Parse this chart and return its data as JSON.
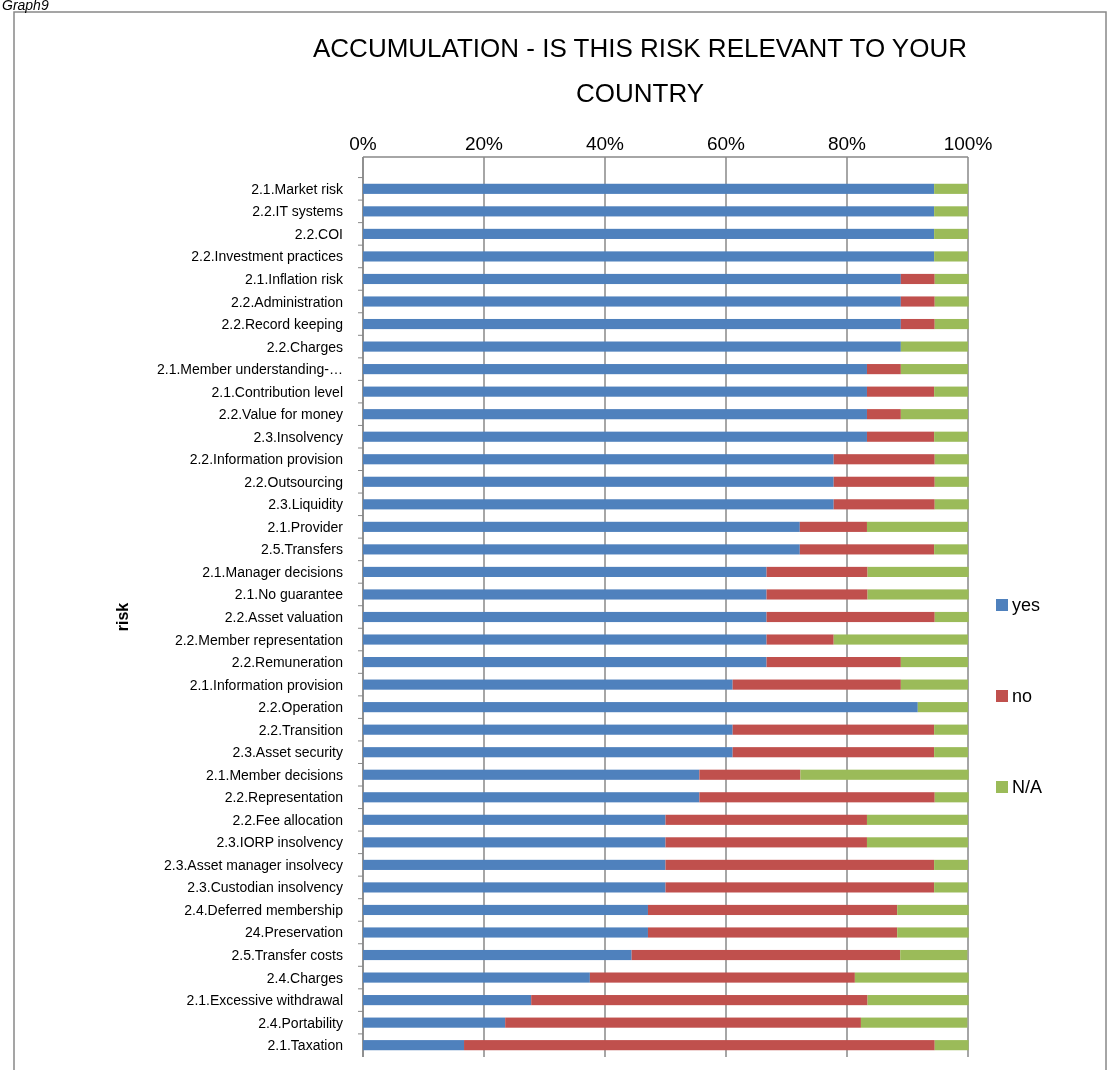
{
  "chart_data": {
    "type": "bar",
    "orientation": "horizontal",
    "stacked": true,
    "title": "ACCUMULATION - IS THIS RISK RELEVANT TO YOUR COUNTRY",
    "ylabel": "risk",
    "annotations": [
      "Graph9"
    ],
    "categories": [
      "2.1.Market risk",
      "2.2.IT systems",
      "2.2.COI",
      "2.2.Investment practices",
      "2.1.Inflation risk",
      "2.2.Administration",
      "2.2.Record keeping",
      "2.2.Charges",
      "2.1.Member understanding-…",
      "2.1.Contribution level",
      "2.2.Value for money",
      "2.3.Insolvency",
      "2.2.Information provision",
      "2.2.Outsourcing",
      "2.3.Liquidity",
      "2.1.Provider",
      "2.5.Transfers",
      "2.1.Manager decisions",
      "2.1.No guarantee",
      "2.2.Asset valuation",
      "2.2.Member representation",
      "2.2.Remuneration",
      "2.1.Information provision",
      "2.2.Operation",
      "2.2.Transition",
      "2.3.Asset security",
      "2.1.Member decisions",
      "2.2.Representation",
      "2.2.Fee allocation",
      "2.3.IORP insolvency",
      "2.3.Asset manager insolvecy",
      "2.3.Custodian insolvency",
      "2.4.Deferred membership",
      "24.Preservation",
      "2.5.Transfer costs",
      "2.4.Charges",
      "2.1.Excessive withdrawal",
      "2.4.Portability",
      "2.1.Taxation"
    ],
    "series": [
      {
        "name": "yes",
        "color": "#4f81bd",
        "values": [
          94.4,
          94.4,
          94.4,
          94.4,
          88.9,
          88.9,
          88.9,
          88.9,
          83.3,
          83.3,
          83.3,
          83.3,
          77.8,
          77.8,
          77.8,
          72.2,
          72.2,
          66.7,
          66.7,
          66.7,
          66.7,
          66.7,
          61.1,
          91.7,
          61.1,
          61.1,
          55.6,
          55.6,
          50,
          50,
          50,
          50,
          47.1,
          47.1,
          44.4,
          37.5,
          27.8,
          23.5,
          16.7
        ]
      },
      {
        "name": "no",
        "color": "#c0504d",
        "values": [
          0,
          0,
          0,
          0,
          5.6,
          5.6,
          5.6,
          0,
          5.6,
          11.1,
          5.6,
          11.1,
          16.7,
          16.7,
          16.7,
          11.1,
          22.2,
          16.7,
          16.7,
          27.8,
          11.1,
          22.2,
          27.8,
          0,
          33.3,
          33.3,
          16.7,
          38.9,
          33.3,
          33.3,
          44.4,
          44.4,
          41.2,
          41.2,
          44.4,
          43.8,
          55.6,
          58.8,
          77.8
        ]
      },
      {
        "name": "N/A",
        "color": "#9bbb59",
        "values": [
          5.6,
          5.6,
          5.6,
          5.6,
          5.6,
          5.6,
          5.6,
          11.1,
          11.1,
          5.6,
          11.1,
          5.6,
          5.6,
          5.6,
          5.6,
          16.7,
          5.6,
          16.7,
          16.7,
          5.6,
          22.2,
          11.1,
          11.1,
          8.3,
          5.6,
          5.6,
          27.8,
          5.6,
          16.7,
          16.7,
          5.6,
          5.6,
          11.8,
          11.8,
          11.1,
          18.8,
          16.7,
          17.6,
          5.6
        ]
      }
    ],
    "xlim": [
      0,
      100
    ],
    "xticks": [
      {
        "value": 0,
        "label": "0%"
      },
      {
        "value": 20,
        "label": "20%"
      },
      {
        "value": 40,
        "label": "40%"
      },
      {
        "value": 60,
        "label": "60%"
      },
      {
        "value": 80,
        "label": "80%"
      },
      {
        "value": 100,
        "label": "100%"
      }
    ],
    "grid": "x",
    "legend": "right"
  }
}
